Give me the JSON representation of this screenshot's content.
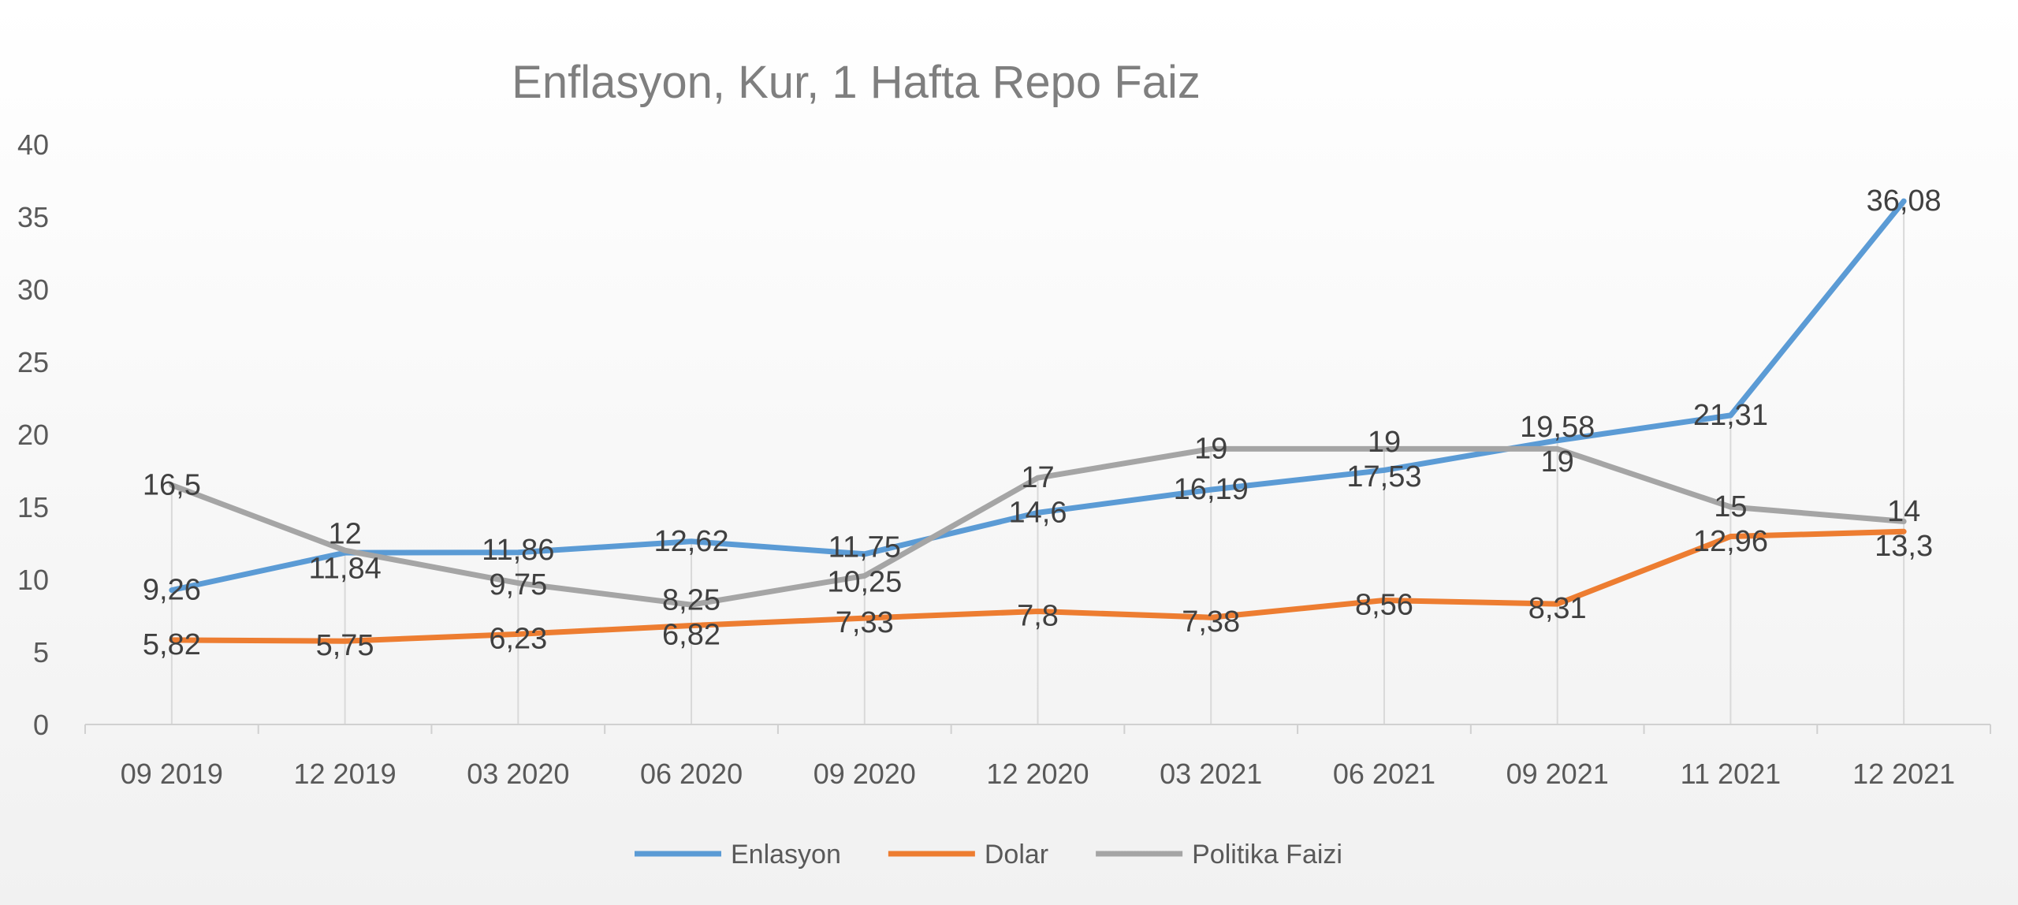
{
  "chart_data": {
    "type": "line",
    "title": "Enflasyon, Kur, 1 Hafta Repo Faiz",
    "xlabel": "",
    "ylabel": "",
    "ylim": [
      0,
      40
    ],
    "yticks": [
      0,
      5,
      10,
      15,
      20,
      25,
      30,
      35,
      40
    ],
    "grid": false,
    "legend": "bottom",
    "categories": [
      "09 2019",
      "12 2019",
      "03 2020",
      "06 2020",
      "09 2020",
      "12 2020",
      "03 2021",
      "06 2021",
      "09 2021",
      "11 2021",
      "12 2021"
    ],
    "series": [
      {
        "name": "Enlasyon",
        "color": "#5B9BD5",
        "values": [
          9.26,
          11.84,
          11.86,
          12.62,
          11.75,
          14.6,
          16.19,
          17.53,
          19.58,
          21.31,
          36.08
        ],
        "labels": [
          "9,26",
          "11,84",
          "11,86",
          "12,62",
          "11,75",
          "14,6",
          "16,19",
          "17,53",
          "19,58",
          "21,31",
          "36,08"
        ]
      },
      {
        "name": "Dolar",
        "color": "#ED7D31",
        "values": [
          5.82,
          5.75,
          6.23,
          6.82,
          7.33,
          7.8,
          7.38,
          8.56,
          8.31,
          12.96,
          13.3
        ],
        "labels": [
          "5,82",
          "5,75",
          "6,23",
          "6,82",
          "7,33",
          "7,8",
          "7,38",
          "8,56",
          "8,31",
          "12,96",
          "13,3"
        ]
      },
      {
        "name": "Politika Faizi",
        "color": "#A5A5A5",
        "values": [
          16.5,
          12,
          9.75,
          8.25,
          10.25,
          17,
          19,
          19,
          19,
          15,
          14
        ],
        "labels": [
          "16,5",
          "12",
          "9,75",
          "8,25",
          "10,25",
          "17",
          "19",
          "19",
          "19",
          "15",
          "14"
        ]
      }
    ]
  }
}
